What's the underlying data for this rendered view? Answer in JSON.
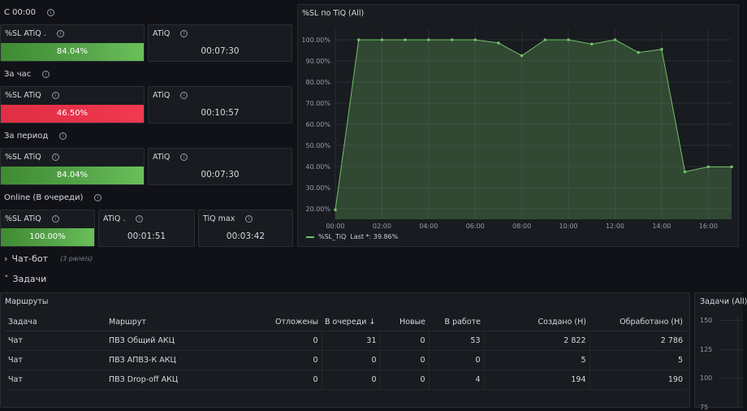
{
  "sections": {
    "since_midnight": "С 00:00",
    "last_hour": "За час",
    "period": "За период",
    "online": "Online (В очереди)"
  },
  "stats": {
    "r1_sl_title": "%SL ATiQ .",
    "r1_sl_value": "84.04%",
    "r1_atiq_title": "ATiQ",
    "r1_atiq_value": "00:07:30",
    "r2_sl_title": "%SL ATiQ",
    "r2_sl_value": "46.50%",
    "r2_atiq_title": "ATiQ",
    "r2_atiq_value": "00:10:57",
    "r3_sl_title": "%SL ATiQ",
    "r3_sl_value": "84.04%",
    "r3_atiq_title": "ATiQ",
    "r3_atiq_value": "00:07:30",
    "r4_sl_title": "%SL ATiQ",
    "r4_sl_value": "100.00%",
    "r4_atiq_title": "ATiQ .",
    "r4_atiq_value": "00:01:51",
    "r4_tiqmax_title": "TiQ max",
    "r4_tiqmax_value": "00:03:42"
  },
  "chart_panel": {
    "title": "%SL по TiQ (All)",
    "legend_name": "%SL_TiQ",
    "legend_last": "Last *: 39.86%"
  },
  "chart_data": {
    "type": "area",
    "x": [
      "00:00",
      "01:00",
      "02:00",
      "03:00",
      "04:00",
      "05:00",
      "06:00",
      "07:00",
      "08:00",
      "09:00",
      "10:00",
      "11:00",
      "12:00",
      "13:00",
      "14:00",
      "15:00",
      "16:00",
      "17:00"
    ],
    "series": [
      {
        "name": "%SL_TiQ",
        "values": [
          19.5,
          100,
          100,
          100,
          100,
          100,
          100,
          98.5,
          92.5,
          100,
          100,
          98,
          100,
          94,
          95.5,
          37.5,
          39.86,
          39.86
        ]
      }
    ],
    "ylim": [
      15,
      105
    ],
    "yticks": [
      "100.00%",
      "90.00%",
      "80.00%",
      "70.00%",
      "60.00%",
      "50.00%",
      "40.00%",
      "30.00%",
      "20.00%"
    ],
    "xticks": [
      "00:00",
      "02:00",
      "04:00",
      "06:00",
      "08:00",
      "10:00",
      "12:00",
      "14:00",
      "16:00"
    ],
    "grid": true,
    "color": "#73bf69"
  },
  "rows": {
    "chatbot": "Чат-бот",
    "chatbot_count": "(3 panels)",
    "tasks": "Задачи"
  },
  "routes_panel": {
    "title": "Маршруты",
    "columns": [
      "Задача",
      "Маршрут",
      "Отложены",
      "В очереди",
      "Новые",
      "В работе",
      "Создано (Н)",
      "Обработано (Н)"
    ],
    "rows": [
      [
        "Чат",
        "ПВЗ Общий АКЦ",
        "0",
        "31",
        "0",
        "53",
        "2 822",
        "2 786"
      ],
      [
        "Чат",
        "ПВЗ АПВЗ-К АКЦ",
        "0",
        "0",
        "0",
        "0",
        "5",
        "5"
      ],
      [
        "Чат",
        "ПВЗ Drop-off АКЦ",
        "0",
        "0",
        "0",
        "4",
        "194",
        "190"
      ]
    ]
  },
  "tasks_chart": {
    "title": "Задачи (All)",
    "yticks": [
      "150",
      "125",
      "100",
      "75"
    ]
  }
}
